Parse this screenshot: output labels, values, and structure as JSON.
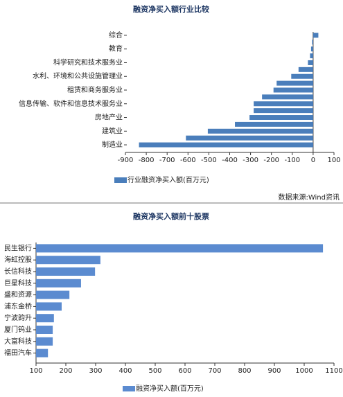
{
  "chart_data": [
    {
      "type": "bar",
      "orientation": "horizontal",
      "title": "融资净买入额行业比较",
      "categories": [
        "综合",
        null,
        "教育",
        null,
        "科学研究和技术服务业",
        null,
        "水利、环境和公共设施管理业",
        null,
        "租赁和商务服务业",
        null,
        "信息传输、软件和信息技术服务业",
        null,
        "房地产业",
        null,
        "建筑业",
        null,
        "制造业"
      ],
      "series": [
        {
          "name": "行业融资净买入额(百万元)",
          "color": "#4a7ebb",
          "values": [
            25,
            -5,
            -10,
            -15,
            -25,
            -70,
            -105,
            -175,
            -190,
            -245,
            -285,
            -285,
            -305,
            -375,
            -505,
            -610,
            -835
          ]
        }
      ],
      "xlim": [
        -900,
        100
      ],
      "xticks": [
        -900,
        -800,
        -700,
        -600,
        -500,
        -400,
        -300,
        -200,
        -100,
        0,
        100
      ],
      "source": "数据来源:Wind资讯"
    },
    {
      "type": "bar",
      "orientation": "horizontal",
      "title": "融资净买入额前十股票",
      "categories": [
        "民生银行",
        "海虹控股",
        "长信科技",
        "巨星科技",
        "盛和资源",
        "浦东金桥",
        "宁波韵升",
        "厦门钨业",
        "大富科技",
        "福田汽车"
      ],
      "series": [
        {
          "name": "融资净买入额(百万元)",
          "color": "#5b8bd0",
          "values": [
            1063,
            316,
            298,
            251,
            212,
            186,
            160,
            156,
            156,
            140
          ]
        }
      ],
      "xlim": [
        100,
        1100
      ],
      "xticks": [
        100,
        200,
        300,
        400,
        500,
        600,
        700,
        800,
        900,
        1000,
        1100
      ]
    }
  ]
}
